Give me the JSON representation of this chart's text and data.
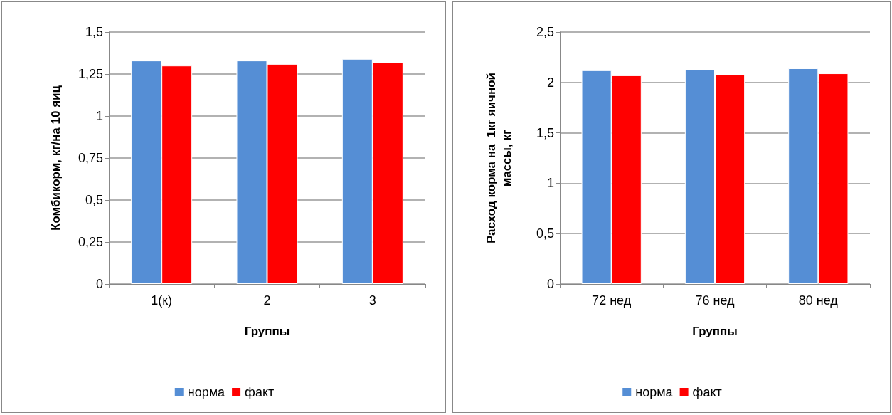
{
  "chart_data": [
    {
      "type": "bar",
      "xlabel": "Группы",
      "ylabel": "Комбикорм, кг/на 10 яиц",
      "categories": [
        "1(к)",
        "2",
        "3"
      ],
      "series": [
        {
          "name": "норма",
          "color": "#558ed5",
          "values": [
            1.33,
            1.33,
            1.34
          ]
        },
        {
          "name": "факт",
          "color": "#ff0000",
          "values": [
            1.3,
            1.31,
            1.32
          ]
        }
      ],
      "ylim": [
        0,
        1.5
      ],
      "yticks": [
        0,
        {
          "value": 0.25,
          "label": "0,25"
        },
        {
          "value": 0.5,
          "label": "0,5"
        },
        {
          "value": 0.75,
          "label": "0,75"
        },
        1,
        {
          "value": 1.25,
          "label": "1,25"
        },
        {
          "value": 1.5,
          "label": "1,5"
        }
      ],
      "grid": "y",
      "legend": "bottom"
    },
    {
      "type": "bar",
      "xlabel": "Группы",
      "ylabel": "Расход корма на  1кг яичной\nмассы, кг",
      "categories": [
        "72 нед",
        "76 нед",
        "80 нед"
      ],
      "series": [
        {
          "name": "норма",
          "color": "#558ed5",
          "values": [
            2.12,
            2.13,
            2.14
          ]
        },
        {
          "name": "факт",
          "color": "#ff0000",
          "values": [
            2.07,
            2.08,
            2.09
          ]
        }
      ],
      "ylim": [
        0,
        2.5
      ],
      "yticks": [
        0,
        {
          "value": 0.5,
          "label": "0,5"
        },
        1,
        {
          "value": 1.5,
          "label": "1,5"
        },
        2,
        {
          "value": 2.5,
          "label": "2,5"
        }
      ],
      "grid": "y",
      "legend": "bottom"
    }
  ]
}
